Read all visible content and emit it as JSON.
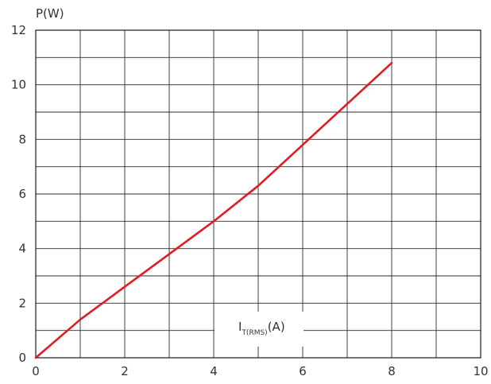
{
  "chart_data": {
    "type": "line",
    "ylabel": "P(W)",
    "xlabel": {
      "main": "I",
      "sub": "T(RMS)",
      "unit": "(A)"
    },
    "xlim": [
      0,
      10
    ],
    "ylim": [
      0,
      12
    ],
    "x_ticks": [
      "0",
      "2",
      "4",
      "6",
      "8",
      "10"
    ],
    "y_ticks": [
      "0",
      "2",
      "4",
      "6",
      "8",
      "10",
      "12"
    ],
    "grid": true,
    "series": [
      {
        "color": "#e01b22",
        "x": [
          0,
          1,
          2,
          3,
          4,
          5,
          6,
          7,
          8
        ],
        "y": [
          0,
          1.4,
          2.6,
          3.8,
          5.0,
          6.3,
          7.8,
          9.3,
          10.8
        ]
      }
    ]
  }
}
